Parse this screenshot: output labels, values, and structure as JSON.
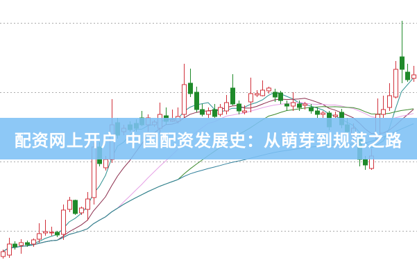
{
  "banner": {
    "title": "配资网上开户 中国配资发展史：从萌芽到规范之路"
  },
  "chart_data": {
    "type": "candlestick",
    "title": "",
    "xlabel": "",
    "ylabel": "",
    "ylim": [
      0,
      40
    ],
    "grid": true,
    "colors": {
      "up": "#d0303a",
      "down": "#1f8a2a",
      "grid": "#aaaaaa"
    },
    "ma_colors": [
      "#2b8f8f",
      "#8a2a4a",
      "#e6a0e6",
      "#3c8a2c",
      "#2f7f9a"
    ],
    "ma_periods": [
      5,
      10,
      20,
      30,
      60
    ],
    "candles": [
      [
        3.0,
        3.7,
        4.0,
        2.7
      ],
      [
        3.2,
        4.8,
        5.7,
        2.8
      ],
      [
        4.8,
        4.4,
        5.2,
        4.0
      ],
      [
        4.6,
        5.0,
        5.5,
        3.4
      ],
      [
        5.0,
        4.7,
        5.3,
        4.4
      ],
      [
        4.8,
        5.4,
        5.6,
        4.4
      ],
      [
        5.5,
        6.3,
        7.8,
        5.0
      ],
      [
        6.4,
        6.6,
        8.3,
        6.0
      ],
      [
        6.4,
        6.5,
        7.3,
        6.0
      ],
      [
        6.5,
        6.1,
        6.7,
        5.8
      ],
      [
        6.2,
        9.7,
        10.5,
        5.4
      ],
      [
        9.8,
        11.1,
        11.6,
        9.4
      ],
      [
        11.1,
        9.2,
        11.2,
        9.0
      ],
      [
        9.3,
        10.0,
        10.2,
        9.0
      ],
      [
        9.8,
        11.3,
        12.3,
        8.2
      ],
      [
        11.5,
        18.8,
        19.5,
        10.5
      ],
      [
        18.8,
        16.4,
        19.5,
        16.0
      ],
      [
        15.8,
        17.0,
        17.5,
        15.4
      ],
      [
        17.0,
        22.0,
        25.7,
        16.5
      ],
      [
        22.3,
        20.5,
        23.0,
        20.0
      ],
      [
        21.0,
        21.5,
        22.0,
        20.5
      ],
      [
        22.0,
        21.3,
        22.5,
        21.0
      ],
      [
        22.2,
        21.5,
        22.8,
        21.0
      ],
      [
        23.0,
        22.0,
        24.0,
        21.8
      ],
      [
        22.0,
        23.0,
        23.5,
        21.0
      ],
      [
        22.0,
        22.4,
        22.7,
        21.7
      ],
      [
        21.5,
        23.5,
        25.2,
        20.8
      ],
      [
        23.3,
        22.5,
        24.5,
        22.0
      ],
      [
        22.5,
        22.7,
        24.2,
        22.4
      ],
      [
        22.5,
        23.2,
        24.5,
        22.2
      ],
      [
        23.5,
        27.8,
        30.8,
        23.0
      ],
      [
        28.0,
        26.5,
        30.1,
        26.0
      ],
      [
        26.7,
        24.2,
        27.5,
        23.8
      ],
      [
        24.2,
        23.5,
        25.0,
        23.2
      ],
      [
        23.5,
        24.0,
        24.5,
        23.0
      ],
      [
        24.2,
        23.2,
        25.0,
        23.0
      ],
      [
        23.5,
        24.5,
        25.0,
        23.2
      ],
      [
        24.0,
        25.2,
        26.3,
        23.5
      ],
      [
        27.3,
        25.0,
        29.3,
        24.8
      ],
      [
        25.0,
        24.0,
        25.5,
        23.5
      ],
      [
        23.8,
        24.0,
        24.8,
        23.5
      ],
      [
        25.3,
        26.5,
        28.8,
        23.8
      ],
      [
        26.3,
        26.5,
        27.0,
        26.0
      ],
      [
        26.2,
        27.0,
        28.4,
        26.1
      ],
      [
        26.9,
        27.3,
        27.5,
        26.5
      ],
      [
        26.7,
        26.0,
        27.2,
        25.3
      ],
      [
        26.6,
        25.5,
        26.9,
        25.0
      ],
      [
        25.0,
        24.7,
        25.5,
        24.0
      ],
      [
        24.7,
        25.2,
        26.7,
        24.0
      ],
      [
        25.0,
        24.5,
        25.5,
        24.0
      ],
      [
        24.8,
        25.0,
        25.3,
        24.2
      ],
      [
        24.5,
        24.0,
        25.0,
        23.6
      ],
      [
        24.0,
        23.5,
        24.5,
        23.0
      ],
      [
        23.5,
        23.7,
        24.0,
        23.0
      ],
      [
        23.7,
        21.7,
        24.0,
        21.2
      ],
      [
        23.2,
        23.4,
        23.9,
        23.0
      ],
      [
        23.8,
        22.0,
        24.3,
        21.5
      ],
      [
        22.0,
        21.0,
        23.0,
        20.4
      ],
      [
        20.5,
        21.5,
        22.2,
        19.5
      ],
      [
        20.0,
        17.0,
        20.5,
        16.0
      ],
      [
        17.0,
        16.2,
        17.5,
        15.5
      ],
      [
        15.7,
        17.5,
        18.5,
        15.5
      ],
      [
        20.0,
        23.5,
        25.8,
        19.5
      ],
      [
        23.5,
        24.2,
        26.2,
        23.0
      ],
      [
        24.5,
        26.2,
        28.0,
        24.0
      ],
      [
        26.0,
        30.0,
        31.2,
        25.8
      ],
      [
        31.8,
        30.0,
        37.0,
        28.0
      ],
      [
        29.6,
        28.5,
        30.8,
        28.2
      ],
      [
        28.7,
        29.2,
        30.5,
        28.2
      ]
    ]
  }
}
